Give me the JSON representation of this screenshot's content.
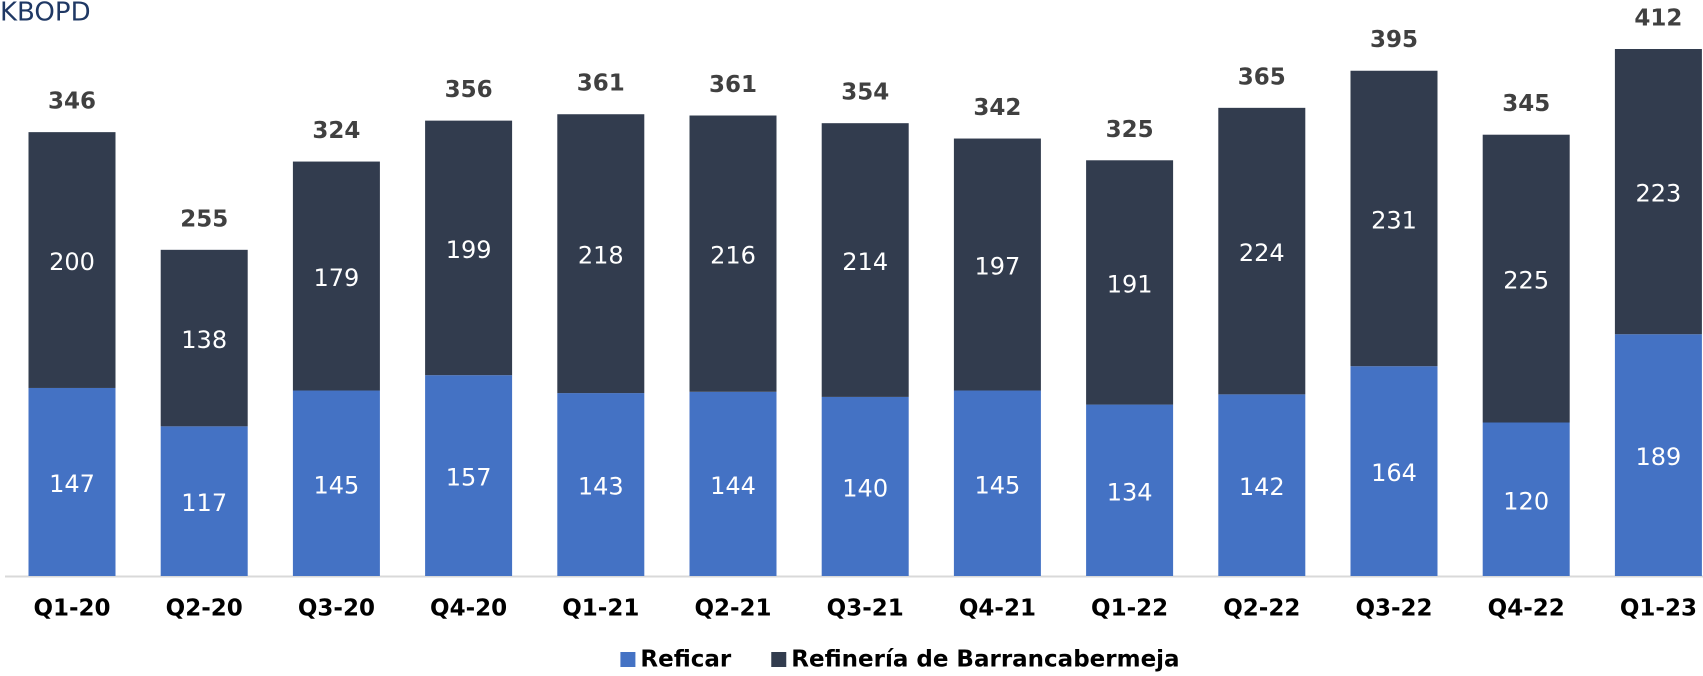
{
  "chart_data": {
    "type": "stacked_bar",
    "title": "KBOPD",
    "categories": [
      "Q1-20",
      "Q2-20",
      "Q3-20",
      "Q4-20",
      "Q1-21",
      "Q2-21",
      "Q3-21",
      "Q4-21",
      "Q1-22",
      "Q2-22",
      "Q3-22",
      "Q4-22",
      "Q1-23"
    ],
    "series": [
      {
        "name": "Reficar",
        "color": "#4472c4",
        "values": [
          147,
          117,
          145,
          157,
          143,
          144,
          140,
          145,
          134,
          142,
          164,
          120,
          189
        ]
      },
      {
        "name": "Refinería de Barrancabermeja",
        "color": "#323c4e",
        "values": [
          200,
          138,
          179,
          199,
          218,
          216,
          214,
          197,
          191,
          224,
          231,
          225,
          223
        ]
      }
    ],
    "totals": [
      346,
      255,
      324,
      356,
      361,
      361,
      354,
      342,
      325,
      365,
      395,
      345,
      412
    ],
    "legend": "bottom"
  }
}
